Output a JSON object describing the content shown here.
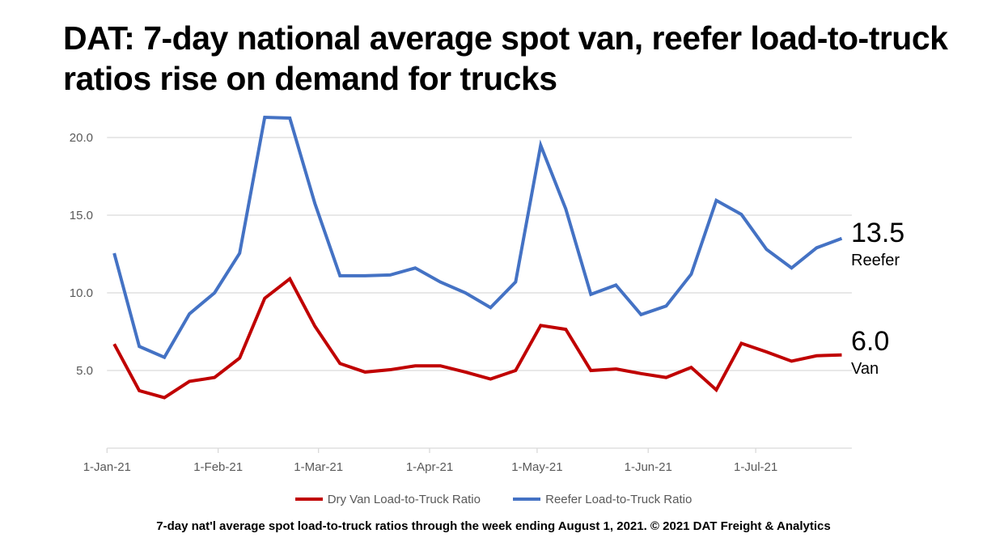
{
  "chart_data": {
    "type": "line",
    "title": "DAT: 7-day national average spot van, reefer load-to-truck ratios rise on demand for trucks",
    "footnote": "7-day nat'l average spot load-to-truck ratios through the week ending August 1, 2021. © 2021 DAT Freight & Analytics",
    "x_start": "2021-01-03",
    "x_step_days": 7,
    "x_ticks": [
      {
        "date": "2021-01-01",
        "label": "1-Jan-21"
      },
      {
        "date": "2021-02-01",
        "label": "1-Feb-21"
      },
      {
        "date": "2021-03-01",
        "label": "1-Mar-21"
      },
      {
        "date": "2021-04-01",
        "label": "1-Apr-21"
      },
      {
        "date": "2021-05-01",
        "label": "1-May-21"
      },
      {
        "date": "2021-06-01",
        "label": "1-Jun-21"
      },
      {
        "date": "2021-07-01",
        "label": "1-Jul-21"
      }
    ],
    "xlim": [
      "2021-01-01",
      "2021-07-26"
    ],
    "y_ticks": [
      {
        "v": 5,
        "label": "5.0"
      },
      {
        "v": 10,
        "label": "10.0"
      },
      {
        "v": 15,
        "label": "15.0"
      },
      {
        "v": 20,
        "label": "20.0"
      }
    ],
    "ylim": [
      0,
      22
    ],
    "grid": true,
    "legend_position": "bottom",
    "series": [
      {
        "name": "Dry Van Load-to-Truck Ratio",
        "color": "#C00000",
        "end_value": "6.0",
        "end_label": "Van",
        "values": [
          6.7,
          3.7,
          3.25,
          4.3,
          4.55,
          5.8,
          9.65,
          10.9,
          7.85,
          5.45,
          4.9,
          5.05,
          5.3,
          5.3,
          4.9,
          4.45,
          5.0,
          7.9,
          7.65,
          5.0,
          5.1,
          4.8,
          4.55,
          5.2,
          3.75,
          6.75,
          6.2,
          5.6,
          5.95,
          6.0
        ]
      },
      {
        "name": "Reefer Load-to-Truck Ratio",
        "color": "#4472C4",
        "end_value": "13.5",
        "end_label": "Reefer",
        "values": [
          12.55,
          6.55,
          5.85,
          8.65,
          10.0,
          12.55,
          21.3,
          21.25,
          15.75,
          11.1,
          11.1,
          11.15,
          11.6,
          10.7,
          10.0,
          9.05,
          10.7,
          19.5,
          15.4,
          9.9,
          10.5,
          8.6,
          9.15,
          11.2,
          15.95,
          15.05,
          12.8,
          11.6,
          12.9,
          13.5
        ]
      }
    ]
  }
}
